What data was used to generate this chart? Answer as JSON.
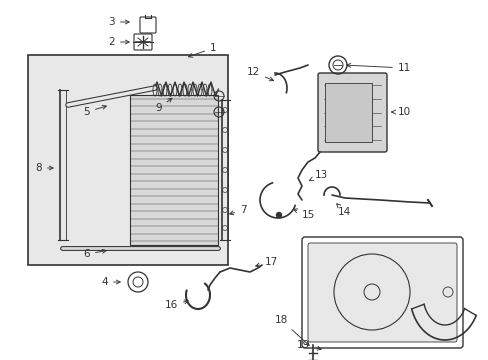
{
  "bg_color": "#ffffff",
  "line_color": "#333333",
  "gray_fill": "#e0e0e0",
  "label_fontsize": 7.5,
  "lw": 0.9
}
